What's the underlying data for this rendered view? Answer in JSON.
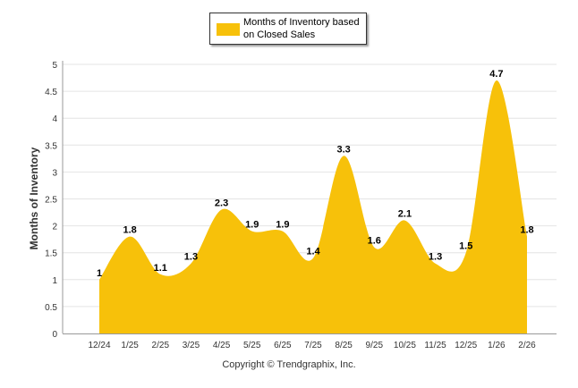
{
  "chart_data": {
    "type": "area",
    "series": [
      {
        "name": "Months of Inventory based on Closed Sales",
        "values": [
          1,
          1.8,
          1.1,
          1.3,
          2.3,
          1.9,
          1.9,
          1.4,
          3.3,
          1.6,
          2.1,
          1.3,
          1.5,
          4.7,
          1.8
        ],
        "labels": [
          "1",
          "1.8",
          "1.1",
          "1.3",
          "2.3",
          "1.9",
          "1.9",
          "1.4",
          "3.3",
          "1.6",
          "2.1",
          "1.3",
          "1.5",
          "4.7",
          "1.8"
        ]
      }
    ],
    "categories": [
      "12/24",
      "1/25",
      "2/25",
      "3/25",
      "4/25",
      "5/25",
      "6/25",
      "7/25",
      "8/25",
      "9/25",
      "10/25",
      "11/25",
      "12/25",
      "1/26",
      "2/26"
    ],
    "ylabel": "Months of Inventory",
    "xlabel": "",
    "ylim": [
      0,
      5
    ],
    "yticks": [
      "0",
      "0.5",
      "1",
      "1.5",
      "2",
      "2.5",
      "3",
      "3.5",
      "4",
      "4.5",
      "5"
    ],
    "grid": true,
    "legend_position": "top-center",
    "color": "#f7c10a"
  },
  "legend": {
    "label": "Months of Inventory based on Closed Sales"
  },
  "footer": {
    "copyright": "Copyright © Trendgraphix, Inc."
  }
}
